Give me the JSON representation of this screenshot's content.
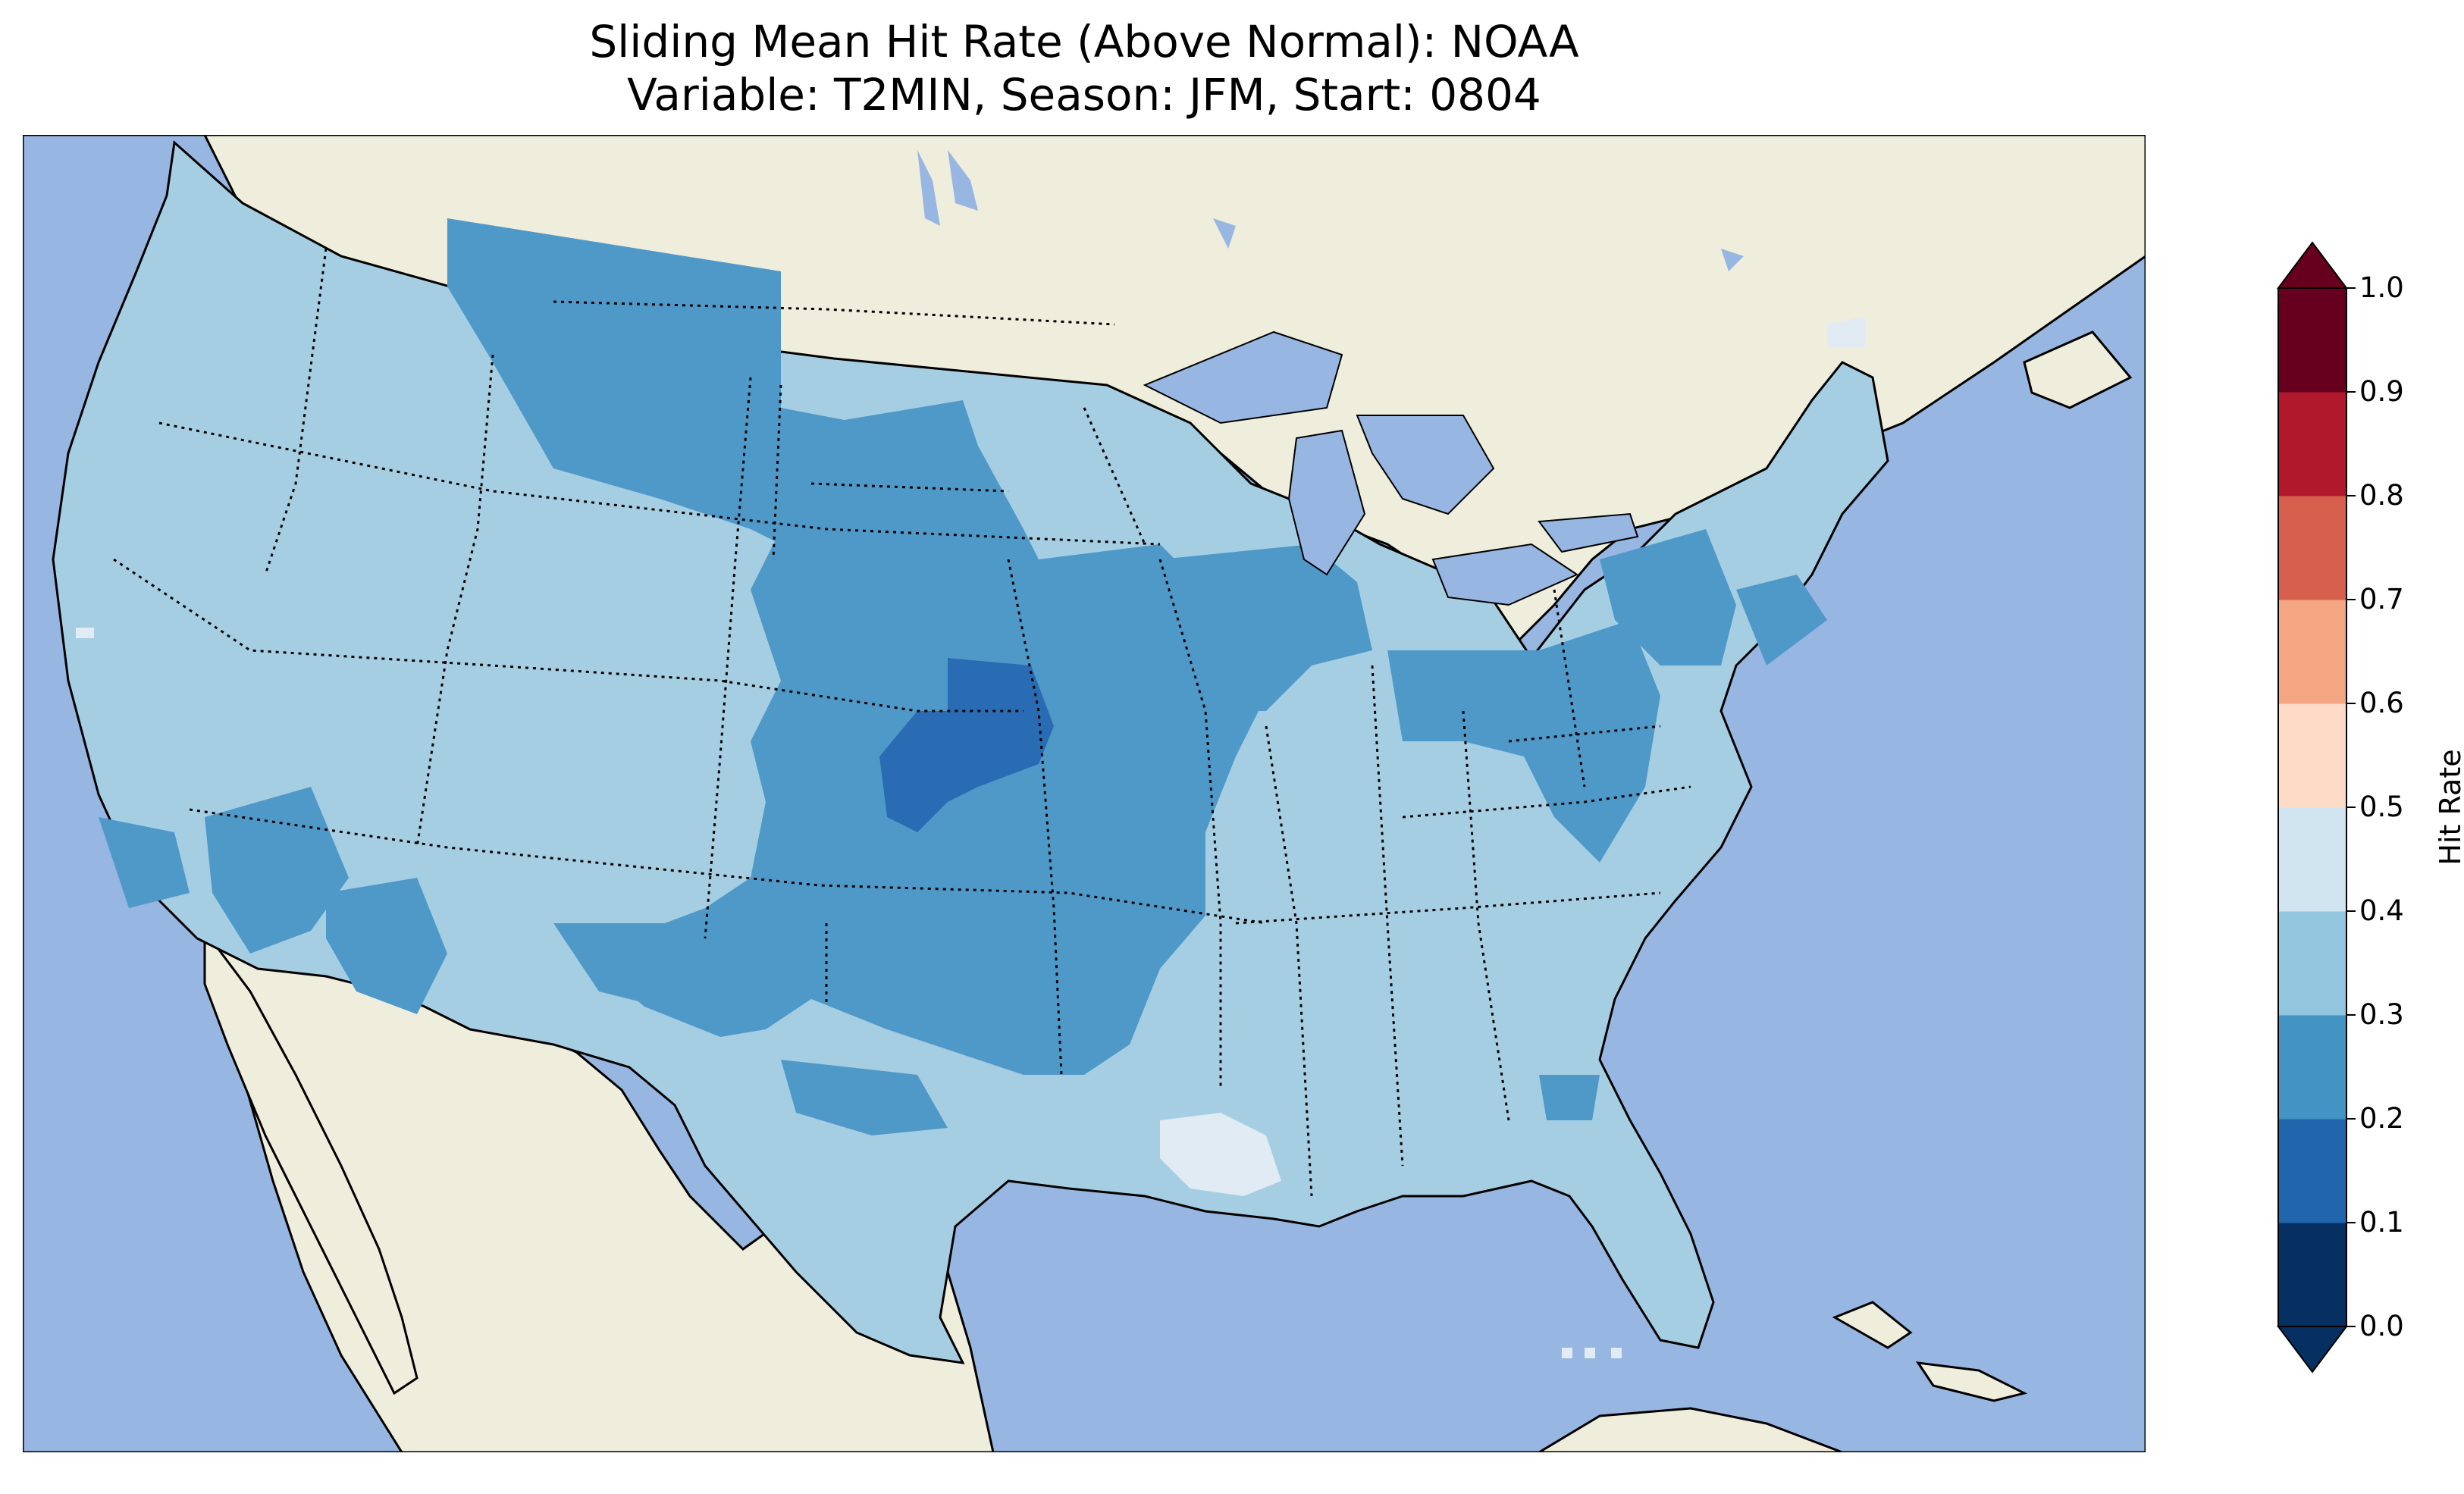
{
  "title": {
    "line1": "Sliding Mean Hit Rate (Above Normal): NOAA",
    "line2": "Variable: T2MIN, Season: JFM, Start: 0804"
  },
  "map": {
    "colors": {
      "ocean": "#97b6e1",
      "land": "#efeddc",
      "border": "#000000"
    }
  },
  "colorbar": {
    "label": "Hit Rate",
    "ticks": [
      "0.0",
      "0.1",
      "0.2",
      "0.3",
      "0.4",
      "0.5",
      "0.6",
      "0.7",
      "0.8",
      "0.9",
      "1.0"
    ],
    "colors": [
      "#053061",
      "#2166ac",
      "#4393c3",
      "#92c5de",
      "#d1e5f0",
      "#fddbc7",
      "#f4a582",
      "#d6604d",
      "#b2182b",
      "#67001f"
    ],
    "under_color": "#053061",
    "over_color": "#67001f"
  }
}
